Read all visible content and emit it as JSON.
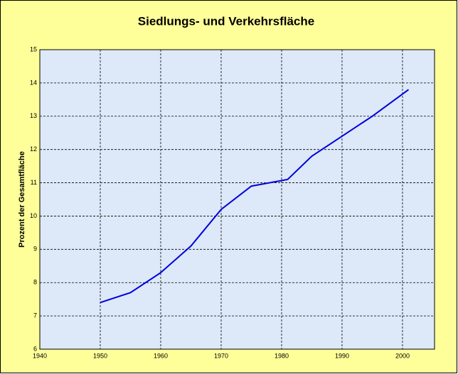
{
  "chart_data": {
    "type": "line",
    "title": "Siedlungs- und Verkehrsfläche",
    "y_label": "Prozent der Gesamtfläche",
    "x": [
      1950,
      1955,
      1960,
      1965,
      1970,
      1975,
      1981,
      1985,
      1990,
      1995,
      2001
    ],
    "series": [
      {
        "color": "#0000dd",
        "values": [
          7.4,
          7.7,
          8.3,
          9.1,
          10.2,
          10.9,
          11.1,
          11.8,
          12.4,
          13.0,
          13.8
        ]
      }
    ],
    "xlim": [
      1940,
      2005.3
    ],
    "xticks": [
      1940,
      1950,
      1960,
      1970,
      1980,
      1990,
      2000
    ],
    "ylim": [
      6,
      15
    ],
    "yticks": [
      6,
      7,
      8,
      9,
      10,
      11,
      12,
      13,
      14,
      15
    ],
    "grid": true
  }
}
